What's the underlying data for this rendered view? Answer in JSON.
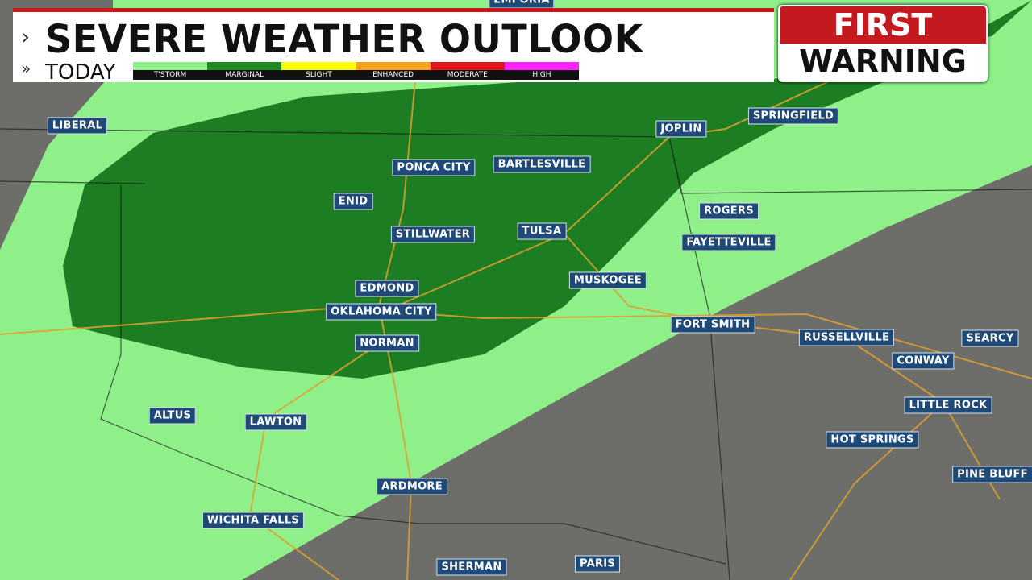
{
  "header": {
    "title": "SEVERE WEATHER OUTLOOK",
    "subtitle": "TODAY"
  },
  "legend": {
    "items": [
      {
        "label": "T'STORM",
        "color": "#8ff08a"
      },
      {
        "label": "MARGINAL",
        "color": "#1d8a22"
      },
      {
        "label": "SLIGHT",
        "color": "#ffff00"
      },
      {
        "label": "ENHANCED",
        "color": "#f7a21b"
      },
      {
        "label": "MODERATE",
        "color": "#e3171b"
      },
      {
        "label": "HIGH",
        "color": "#ff1fff"
      }
    ]
  },
  "badge": {
    "line1": "FIRST",
    "line2": "WARNING"
  },
  "cities": [
    "EMPORIA",
    "LIBERAL",
    "JOPLIN",
    "SPRINGFIELD",
    "PONCA CITY",
    "BARTLESVILLE",
    "ENID",
    "ROGERS",
    "STILLWATER",
    "TULSA",
    "FAYETTEVILLE",
    "EDMOND",
    "MUSKOGEE",
    "OKLAHOMA CITY",
    "FORT SMITH",
    "RUSSELLVILLE",
    "SEARCY",
    "NORMAN",
    "CONWAY",
    "LITTLE ROCK",
    "ALTUS",
    "LAWTON",
    "HOT SPRINGS",
    "PINE BLUFF",
    "ARDMORE",
    "WICHITA FALLS",
    "SHERMAN",
    "PARIS"
  ]
}
